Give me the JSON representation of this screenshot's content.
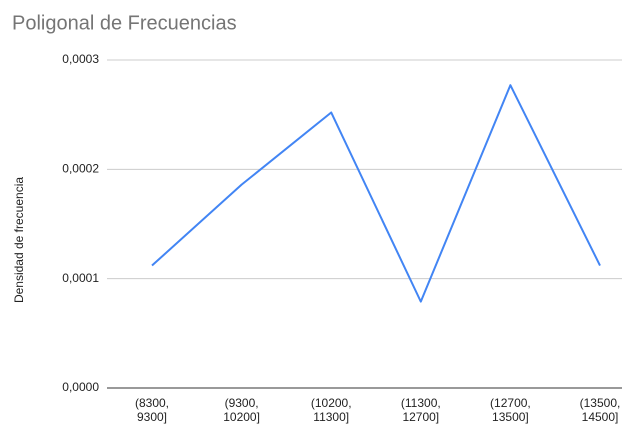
{
  "chart_data": {
    "type": "line",
    "title": "Poligonal de Frecuencias",
    "y_label": "Densidad de frecuencia",
    "categories": [
      "(8300, 9300]",
      "(9300, 10200]",
      "(10200, 11300]",
      "(11300, 12700]",
      "(12700, 13500]",
      "(13500, 14500]"
    ],
    "values": [
      0.000112,
      0.000186,
      0.000252,
      7.9e-05,
      0.000277,
      0.000112
    ],
    "color": "#4285f4",
    "ylim": [
      0,
      0.0003
    ],
    "yticks": [
      {
        "value": 0,
        "label": "0,0000"
      },
      {
        "value": 0.0001,
        "label": "0,0001"
      },
      {
        "value": 0.0002,
        "label": "0,0002"
      },
      {
        "value": 0.0003,
        "label": "0,0003"
      }
    ],
    "grid": true
  }
}
